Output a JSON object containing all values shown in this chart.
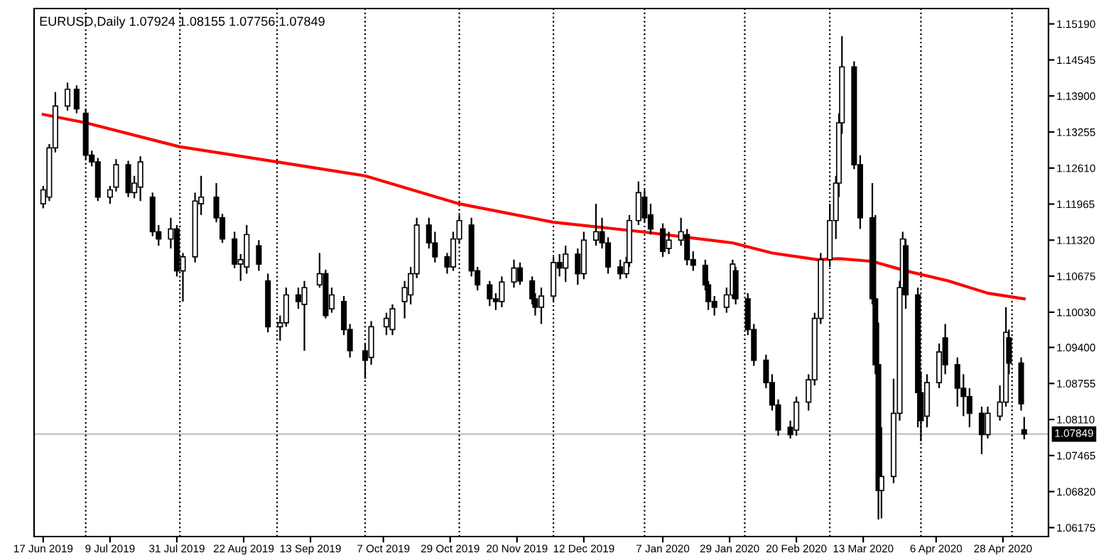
{
  "chart_data": {
    "type": "candlestick",
    "title": "EURUSD,Daily 1.07924 1.08155 1.07756 1.07849",
    "x": [
      "2019-06-17",
      "2019-06-19",
      "2019-06-21",
      "2019-06-25",
      "2019-06-28",
      "2019-07-01",
      "2019-07-03",
      "2019-07-05",
      "2019-07-09",
      "2019-07-11",
      "2019-07-15",
      "2019-07-17",
      "2019-07-19",
      "2019-07-23",
      "2019-07-25",
      "2019-07-29",
      "2019-07-31",
      "2019-08-02",
      "2019-08-06",
      "2019-08-08",
      "2019-08-13",
      "2019-08-15",
      "2019-08-19",
      "2019-08-21",
      "2019-08-23",
      "2019-08-27",
      "2019-08-30",
      "2019-09-03",
      "2019-09-05",
      "2019-09-09",
      "2019-09-11",
      "2019-09-16",
      "2019-09-18",
      "2019-09-20",
      "2019-09-24",
      "2019-09-26",
      "2019-10-01",
      "2019-10-03",
      "2019-10-08",
      "2019-10-10",
      "2019-10-14",
      "2019-10-16",
      "2019-10-18",
      "2019-10-22",
      "2019-10-24",
      "2019-10-28",
      "2019-10-30",
      "2019-11-01",
      "2019-11-05",
      "2019-11-07",
      "2019-11-11",
      "2019-11-13",
      "2019-11-15",
      "2019-11-19",
      "2019-11-21",
      "2019-11-25",
      "2019-11-26",
      "2019-11-28",
      "2019-12-02",
      "2019-12-04",
      "2019-12-06",
      "2019-12-10",
      "2019-12-12",
      "2019-12-16",
      "2019-12-18",
      "2019-12-20",
      "2019-12-24",
      "2019-12-26",
      "2019-12-27",
      "2019-12-30",
      "2020-01-01",
      "2020-01-03",
      "2020-01-07",
      "2020-01-09",
      "2020-01-13",
      "2020-01-15",
      "2020-01-17",
      "2020-01-21",
      "2020-01-22",
      "2020-01-24",
      "2020-01-28",
      "2020-01-30",
      "2020-01-31",
      "2020-02-04",
      "2020-02-06",
      "2020-02-10",
      "2020-02-12",
      "2020-02-14",
      "2020-02-18",
      "2020-02-20",
      "2020-02-24",
      "2020-02-26",
      "2020-02-28",
      "2020-03-02",
      "2020-03-04",
      "2020-03-05",
      "2020-03-06",
      "2020-03-10",
      "2020-03-12",
      "2020-03-16",
      "2020-03-17",
      "2020-03-18",
      "2020-03-19",
      "2020-03-23",
      "2020-03-25",
      "2020-03-26",
      "2020-03-27",
      "2020-03-31",
      "2020-04-01",
      "2020-04-03",
      "2020-04-07",
      "2020-04-09",
      "2020-04-13",
      "2020-04-15",
      "2020-04-17",
      "2020-04-21",
      "2020-04-23",
      "2020-04-27",
      "2020-04-29",
      "2020-04-30",
      "2020-05-04",
      "2020-05-05"
    ],
    "ohlc": [
      [
        1.1197,
        1.1229,
        1.1189,
        1.1222
      ],
      [
        1.1209,
        1.1304,
        1.1202,
        1.1297
      ],
      [
        1.1297,
        1.1397,
        1.1289,
        1.1372
      ],
      [
        1.1372,
        1.1414,
        1.1364,
        1.1402
      ],
      [
        1.1402,
        1.1409,
        1.1359,
        1.1367
      ],
      [
        1.1359,
        1.1367,
        1.1277,
        1.1284
      ],
      [
        1.1284,
        1.1292,
        1.1264,
        1.1272
      ],
      [
        1.1272,
        1.1279,
        1.1202,
        1.1209
      ],
      [
        1.1209,
        1.1229,
        1.1197,
        1.1222
      ],
      [
        1.1227,
        1.1277,
        1.1219,
        1.1267
      ],
      [
        1.1267,
        1.1274,
        1.1209,
        1.1217
      ],
      [
        1.1217,
        1.1247,
        1.1207,
        1.1234
      ],
      [
        1.1227,
        1.1282,
        1.1202,
        1.1272
      ],
      [
        1.1209,
        1.1217,
        1.1139,
        1.1147
      ],
      [
        1.1147,
        1.1159,
        1.1122,
        1.1134
      ],
      [
        1.1134,
        1.1172,
        1.1117,
        1.1152
      ],
      [
        1.1152,
        1.1159,
        1.1067,
        1.1077
      ],
      [
        1.1077,
        1.1109,
        1.1022,
        1.1102
      ],
      [
        1.1102,
        1.1217,
        1.1092,
        1.1202
      ],
      [
        1.1197,
        1.1247,
        1.1177,
        1.1209
      ],
      [
        1.1209,
        1.1234,
        1.1164,
        1.1172
      ],
      [
        1.1172,
        1.1179,
        1.1127,
        1.1134
      ],
      [
        1.1134,
        1.1147,
        1.1082,
        1.1089
      ],
      [
        1.1089,
        1.1107,
        1.1059,
        1.1097
      ],
      [
        1.1084,
        1.1159,
        1.1072,
        1.1142
      ],
      [
        1.1122,
        1.1132,
        1.1077,
        1.1089
      ],
      [
        1.1059,
        1.1072,
        1.0967,
        1.0977
      ],
      [
        1.0977,
        1.0997,
        1.0952,
        1.0984
      ],
      [
        1.0984,
        1.1047,
        1.0977,
        1.1034
      ],
      [
        1.1034,
        1.1047,
        1.1009,
        1.1022
      ],
      [
        1.1017,
        1.1059,
        1.0934,
        1.1047
      ],
      [
        1.1052,
        1.1109,
        1.1047,
        1.1072
      ],
      [
        1.1072,
        1.1079,
        1.0992,
        1.0997
      ],
      [
        1.1009,
        1.1047,
        1.1002,
        1.1034
      ],
      [
        1.1022,
        1.1032,
        1.0962,
        1.0972
      ],
      [
        1.0972,
        1.0982,
        1.0922,
        1.0934
      ],
      [
        1.0934,
        1.0947,
        1.0884,
        1.0917
      ],
      [
        1.0922,
        1.0987,
        1.0909,
        1.0977
      ],
      [
        1.0977,
        1.1002,
        1.0962,
        1.0992
      ],
      [
        1.0972,
        1.1017,
        1.0962,
        1.1009
      ],
      [
        1.1022,
        1.1059,
        1.0992,
        1.1047
      ],
      [
        1.1034,
        1.1084,
        1.1017,
        1.1072
      ],
      [
        1.1072,
        1.1172,
        1.1064,
        1.1159
      ],
      [
        1.1159,
        1.1172,
        1.1117,
        1.1127
      ],
      [
        1.1127,
        1.1147,
        1.1092,
        1.1102
      ],
      [
        1.1102,
        1.1109,
        1.1072,
        1.1084
      ],
      [
        1.1084,
        1.1147,
        1.1077,
        1.1134
      ],
      [
        1.1134,
        1.1177,
        1.1127,
        1.1167
      ],
      [
        1.1159,
        1.1172,
        1.1067,
        1.1077
      ],
      [
        1.1077,
        1.1084,
        1.1042,
        1.1052
      ],
      [
        1.1052,
        1.1059,
        1.1014,
        1.1027
      ],
      [
        1.1027,
        1.1037,
        1.1007,
        1.1022
      ],
      [
        1.1022,
        1.1067,
        1.1012,
        1.1057
      ],
      [
        1.1057,
        1.1097,
        1.1047,
        1.1082
      ],
      [
        1.1082,
        1.1092,
        1.1052,
        1.1059
      ],
      [
        1.1059,
        1.1067,
        1.1017,
        1.1027
      ],
      [
        1.1027,
        1.1037,
        1.0997,
        1.1012
      ],
      [
        1.1012,
        1.1047,
        1.0982,
        1.1032
      ],
      [
        1.1032,
        1.1102,
        1.1022,
        1.1092
      ],
      [
        1.1092,
        1.1107,
        1.1067,
        1.1082
      ],
      [
        1.1082,
        1.1122,
        1.1057,
        1.1107
      ],
      [
        1.1107,
        1.1117,
        1.1052,
        1.1072
      ],
      [
        1.1072,
        1.1147,
        1.1062,
        1.1132
      ],
      [
        1.1132,
        1.1197,
        1.1122,
        1.1147
      ],
      [
        1.1147,
        1.1172,
        1.1117,
        1.1127
      ],
      [
        1.1127,
        1.1137,
        1.1072,
        1.1084
      ],
      [
        1.1084,
        1.1097,
        1.1062,
        1.1072
      ],
      [
        1.1072,
        1.1102,
        1.1064,
        1.1092
      ],
      [
        1.1092,
        1.1177,
        1.1084,
        1.1167
      ],
      [
        1.1167,
        1.1237,
        1.1159,
        1.1217
      ],
      [
        1.1209,
        1.1222,
        1.1164,
        1.1172
      ],
      [
        1.1177,
        1.1197,
        1.1142,
        1.1152
      ],
      [
        1.1152,
        1.1162,
        1.1102,
        1.1112
      ],
      [
        1.1117,
        1.1147,
        1.1107,
        1.1132
      ],
      [
        1.1132,
        1.1172,
        1.1122,
        1.1147
      ],
      [
        1.1142,
        1.1152,
        1.1087,
        1.1097
      ],
      [
        1.1097,
        1.1112,
        1.1077,
        1.1087
      ],
      [
        1.1087,
        1.1097,
        1.1042,
        1.1052
      ],
      [
        1.1052,
        1.1059,
        1.1007,
        1.1022
      ],
      [
        1.1022,
        1.1032,
        1.0997,
        1.1012
      ],
      [
        1.1012,
        1.1047,
        1.1002,
        1.1034
      ],
      [
        1.1034,
        1.1097,
        1.1027,
        1.1089
      ],
      [
        1.1077,
        1.1084,
        1.1017,
        1.1027
      ],
      [
        1.1027,
        1.1037,
        1.0962,
        1.0972
      ],
      [
        1.0972,
        1.0982,
        1.0907,
        1.0917
      ],
      [
        1.0917,
        1.0927,
        1.0867,
        1.0877
      ],
      [
        1.0877,
        1.0892,
        1.0827,
        1.0837
      ],
      [
        1.0837,
        1.0847,
        1.0782,
        1.0792
      ],
      [
        1.0797,
        1.0809,
        1.0777,
        1.0784
      ],
      [
        1.0792,
        1.0852,
        1.0782,
        1.0842
      ],
      [
        1.0842,
        1.0892,
        1.0827,
        1.0882
      ],
      [
        1.0882,
        1.1002,
        1.0872,
        1.0992
      ],
      [
        1.0992,
        1.1109,
        1.0982,
        1.1097
      ],
      [
        1.1097,
        1.1197,
        1.1084,
        1.1167
      ],
      [
        1.1167,
        1.1247,
        1.1134,
        1.1234
      ],
      [
        1.1234,
        1.1359,
        1.1209,
        1.1342
      ],
      [
        1.1342,
        1.1497,
        1.1322,
        1.1442
      ],
      [
        1.1442,
        1.1452,
        1.1259,
        1.1267
      ],
      [
        1.1267,
        1.1284,
        1.1152,
        1.1172
      ],
      [
        1.1172,
        1.1234,
        1.1017,
        1.1027
      ],
      [
        1.1027,
        1.1177,
        1.0892,
        1.0909
      ],
      [
        1.0909,
        1.0984,
        1.0632,
        1.0684
      ],
      [
        1.0684,
        1.0797,
        1.0634,
        1.0709
      ],
      [
        1.0709,
        1.0884,
        1.0697,
        1.0822
      ],
      [
        1.0822,
        1.1059,
        1.0809,
        1.1047
      ],
      [
        1.1047,
        1.1147,
        1.1034,
        1.1134
      ],
      [
        1.1122,
        1.1134,
        1.1009,
        1.1034
      ],
      [
        1.1034,
        1.1047,
        1.0797,
        1.0859
      ],
      [
        1.0859,
        1.0897,
        1.0772,
        1.0809
      ],
      [
        1.0817,
        1.0892,
        1.0797,
        1.0877
      ],
      [
        1.0877,
        1.0947,
        1.0867,
        1.0932
      ],
      [
        1.0957,
        1.0982,
        1.0892,
        1.0909
      ],
      [
        1.0909,
        1.0922,
        1.0834,
        1.0867
      ],
      [
        1.0867,
        1.0892,
        1.0817,
        1.0852
      ],
      [
        1.0852,
        1.0867,
        1.0797,
        1.0822
      ],
      [
        1.0822,
        1.0834,
        1.0749,
        1.0784
      ],
      [
        1.0784,
        1.0834,
        1.0777,
        1.0822
      ],
      [
        1.0817,
        1.0872,
        1.0809,
        1.0842
      ],
      [
        1.0842,
        1.1012,
        1.0834,
        1.0967
      ],
      [
        1.0957,
        1.0972,
        1.0892,
        1.0912
      ],
      [
        1.0912,
        1.0922,
        1.0827,
        1.0839
      ],
      [
        1.07924,
        1.08155,
        1.07756,
        1.07849
      ]
    ],
    "series": [
      {
        "type": "line",
        "color": "#ff0000",
        "x": [
          "2019-06-17",
          "2019-07-01",
          "2019-08-01",
          "2019-09-02",
          "2019-10-01",
          "2019-11-01",
          "2019-12-02",
          "2019-12-31",
          "2020-01-30",
          "2020-02-12",
          "2020-02-27",
          "2020-03-05",
          "2020-03-16",
          "2020-03-27",
          "2020-04-10",
          "2020-04-23",
          "2020-05-05"
        ],
        "values": [
          1.1357,
          1.1342,
          1.1299,
          1.1272,
          1.1247,
          1.1197,
          1.1164,
          1.1147,
          1.1127,
          1.1109,
          1.1097,
          1.1099,
          1.1094,
          1.1077,
          1.1059,
          1.1037,
          1.1027
        ]
      }
    ],
    "xlim": [
      "2019-06-14",
      "2020-05-13"
    ],
    "xticks": [
      {
        "value": "2019-06-17",
        "label": "17 Jun 2019"
      },
      {
        "value": "2019-07-09",
        "label": "9 Jul 2019"
      },
      {
        "value": "2019-07-31",
        "label": "31 Jul 2019"
      },
      {
        "value": "2019-08-22",
        "label": "22 Aug 2019"
      },
      {
        "value": "2019-09-13",
        "label": "13 Sep 2019"
      },
      {
        "value": "2019-10-07",
        "label": "7 Oct 2019"
      },
      {
        "value": "2019-10-29",
        "label": "29 Oct 2019"
      },
      {
        "value": "2019-11-20",
        "label": "20 Nov 2019"
      },
      {
        "value": "2019-12-12",
        "label": "12 Dec 2019"
      },
      {
        "value": "2020-01-07",
        "label": "7 Jan 2020"
      },
      {
        "value": "2020-01-29",
        "label": "29 Jan 2020"
      },
      {
        "value": "2020-02-20",
        "label": "20 Feb 2020"
      },
      {
        "value": "2020-03-13",
        "label": "13 Mar 2020"
      },
      {
        "value": "2020-04-06",
        "label": "6 Apr 2020"
      },
      {
        "value": "2020-04-28",
        "label": "28 Apr 2020"
      }
    ],
    "ylim": [
      1.06015,
      1.15465
    ],
    "yticks": [
      {
        "value": 1.1519,
        "label": "1.15190"
      },
      {
        "value": 1.14545,
        "label": "1.14545"
      },
      {
        "value": 1.139,
        "label": "1.13900"
      },
      {
        "value": 1.13255,
        "label": "1.13255"
      },
      {
        "value": 1.1261,
        "label": "1.12610"
      },
      {
        "value": 1.11965,
        "label": "1.11965"
      },
      {
        "value": 1.1132,
        "label": "1.11320"
      },
      {
        "value": 1.10675,
        "label": "1.10675"
      },
      {
        "value": 1.1003,
        "label": "1.10030"
      },
      {
        "value": 1.094,
        "label": "1.09400"
      },
      {
        "value": 1.08755,
        "label": "1.08755"
      },
      {
        "value": 1.0811,
        "label": "1.08110"
      },
      {
        "value": 1.07465,
        "label": "1.07465"
      },
      {
        "value": 1.0682,
        "label": "1.06820"
      },
      {
        "value": 1.06175,
        "label": "1.06175"
      }
    ],
    "ref_lines": [
      {
        "axis": "y",
        "value": 1.07849,
        "label": "1.07849",
        "color": "#c0c0c0",
        "line_style": "solid"
      },
      {
        "axis": "x",
        "value": "2019-07-01",
        "color": "#000000",
        "line_style": "dotted"
      },
      {
        "axis": "x",
        "value": "2019-08-01",
        "color": "#000000",
        "line_style": "dotted"
      },
      {
        "axis": "x",
        "value": "2019-09-02",
        "color": "#000000",
        "line_style": "dotted"
      },
      {
        "axis": "x",
        "value": "2019-10-01",
        "color": "#000000",
        "line_style": "dotted"
      },
      {
        "axis": "x",
        "value": "2019-11-01",
        "color": "#000000",
        "line_style": "dotted"
      },
      {
        "axis": "x",
        "value": "2019-12-02",
        "color": "#000000",
        "line_style": "dotted"
      },
      {
        "axis": "x",
        "value": "2020-01-01",
        "color": "#000000",
        "line_style": "dotted"
      },
      {
        "axis": "x",
        "value": "2020-02-03",
        "color": "#000000",
        "line_style": "dotted"
      },
      {
        "axis": "x",
        "value": "2020-03-02",
        "color": "#000000",
        "line_style": "dotted"
      },
      {
        "axis": "x",
        "value": "2020-04-01",
        "color": "#000000",
        "line_style": "dotted"
      },
      {
        "axis": "x",
        "value": "2020-05-01",
        "color": "#000000",
        "line_style": "dotted"
      }
    ],
    "grid": false,
    "legend": false
  }
}
